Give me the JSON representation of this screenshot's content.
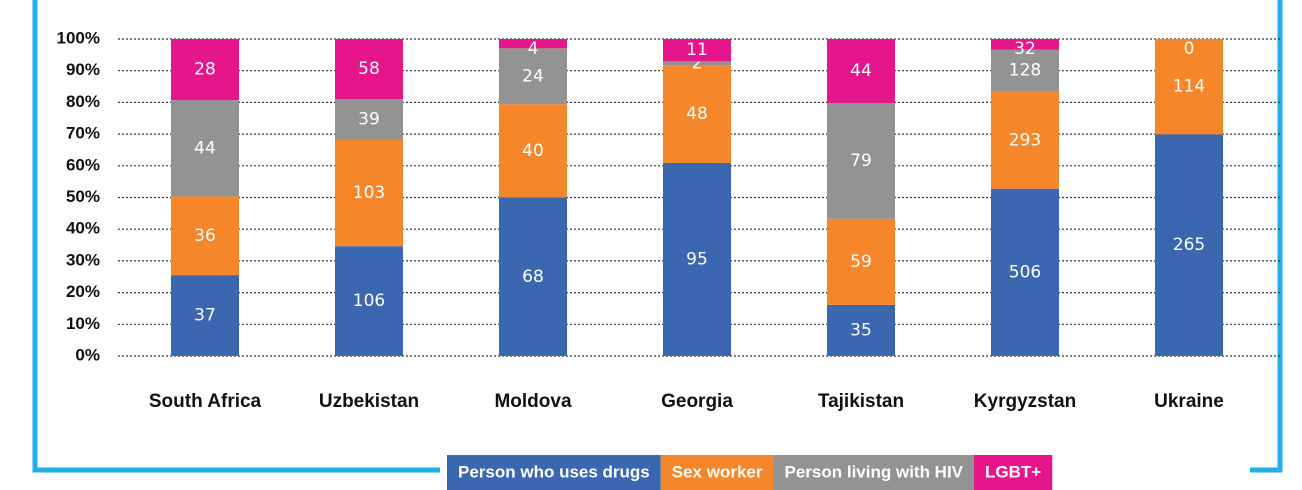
{
  "chart_data": {
    "type": "bar",
    "stacking": "percent",
    "categories": [
      "South Africa",
      "Uzbekistan",
      "Moldova",
      "Georgia",
      "Tajikistan",
      "Kyrgyzstan",
      "Ukraine"
    ],
    "series": [
      {
        "name": "Person who uses drugs",
        "color": "#3a67b0",
        "values": [
          37,
          106,
          68,
          95,
          35,
          506,
          265
        ]
      },
      {
        "name": "Sex worker",
        "color": "#f5862a",
        "values": [
          36,
          103,
          40,
          48,
          59,
          293,
          114
        ]
      },
      {
        "name": "Person living with HIV",
        "color": "#939393",
        "values": [
          44,
          39,
          24,
          2,
          79,
          128,
          null
        ]
      },
      {
        "name": "LGBT+",
        "color": "#e5158b",
        "values": [
          28,
          58,
          4,
          11,
          44,
          32,
          0
        ]
      }
    ],
    "ylim": [
      0,
      100
    ],
    "yticks": [
      {
        "value": 0,
        "label": "0%"
      },
      {
        "value": 10,
        "label": "10%"
      },
      {
        "value": 20,
        "label": "20%"
      },
      {
        "value": 30,
        "label": "30%"
      },
      {
        "value": 40,
        "label": "40%"
      },
      {
        "value": 50,
        "label": "50%"
      },
      {
        "value": 60,
        "label": "60%"
      },
      {
        "value": 70,
        "label": "70%"
      },
      {
        "value": 80,
        "label": "80%"
      },
      {
        "value": 90,
        "label": "90%"
      },
      {
        "value": 100,
        "label": "100%"
      }
    ],
    "grid": true,
    "legend": "bottom"
  }
}
